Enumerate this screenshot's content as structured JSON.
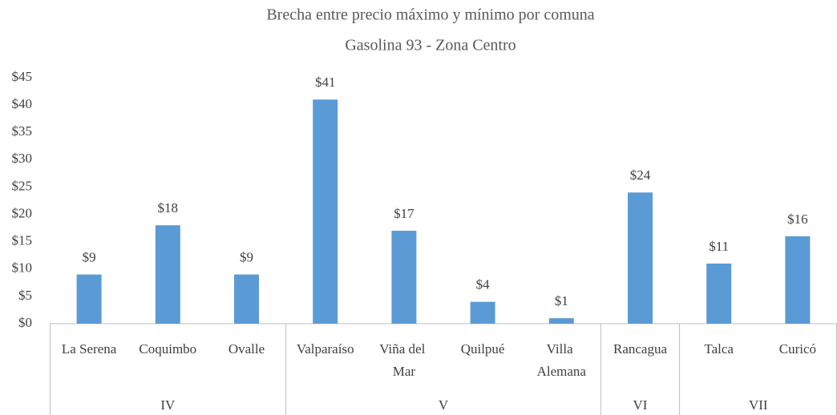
{
  "chart_data": {
    "type": "bar",
    "title": "Brecha entre precio máximo y mínimo por comuna",
    "subtitle": "Gasolina 93 - Zona Centro",
    "categories": [
      "La Serena",
      "Coquimbo",
      "Ovalle",
      "Valparaíso",
      "Viña del Mar",
      "Quilpué",
      "Villa Alemana",
      "Rancagua",
      "Talca",
      "Curicó"
    ],
    "groups": [
      "IV",
      "IV",
      "IV",
      "V",
      "V",
      "V",
      "V",
      "VI",
      "VII",
      "VII"
    ],
    "values": [
      9,
      18,
      9,
      41,
      17,
      4,
      1,
      24,
      11,
      16
    ],
    "value_labels": [
      "$9",
      "$18",
      "$9",
      "$41",
      "$17",
      "$4",
      "$1",
      "$24",
      "$11",
      "$16"
    ],
    "color": "#5b9bd5",
    "ylim": [
      0,
      45
    ],
    "yticks": [
      {
        "value": 0,
        "label": "$0"
      },
      {
        "value": 5,
        "label": "$5"
      },
      {
        "value": 10,
        "label": "$10"
      },
      {
        "value": 15,
        "label": "$15"
      },
      {
        "value": 20,
        "label": "$20"
      },
      {
        "value": 25,
        "label": "$25"
      },
      {
        "value": 30,
        "label": "$30"
      },
      {
        "value": 35,
        "label": "$35"
      },
      {
        "value": 40,
        "label": "$40"
      },
      {
        "value": 45,
        "label": "$45"
      }
    ],
    "grid": false
  }
}
